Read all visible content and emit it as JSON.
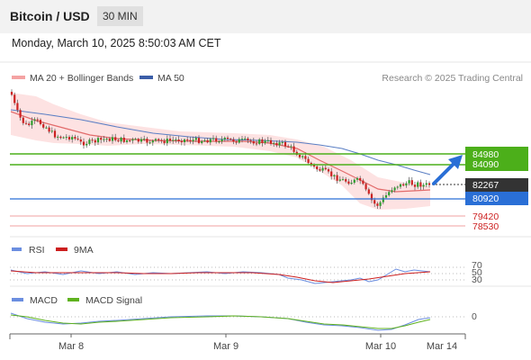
{
  "header": {
    "title": "Bitcoin / USD",
    "timeframe": "30 MIN"
  },
  "datetime": "Monday, March 10, 2025 8:50:03 AM CET",
  "legend": {
    "bb": "MA 20 + Bollinger Bands",
    "ma50": "MA 50",
    "credit": "Research © 2025 Trading Central"
  },
  "colors": {
    "green": "#4caf1a",
    "blue": "#2a6fd6",
    "red": "#cc1f1f",
    "ma50": "#5b7fc4",
    "bb_fill": "#fde2e2",
    "rsi": "#6b8ee0",
    "rsi_ma": "#cc1f1f",
    "macd": "#6b8ee0",
    "macd_signal": "#5fb21e"
  },
  "levels": {
    "resistance_2": "84980",
    "resistance_1": "84090",
    "last": "82267",
    "pivot": "80920",
    "support_1": "79420",
    "support_2": "78530"
  },
  "rsi": {
    "label": "RSI",
    "ma_label": "9MA",
    "ticks": [
      "70",
      "50",
      "30"
    ]
  },
  "macd": {
    "label": "MACD",
    "signal_label": "MACD Signal",
    "zero": "0"
  },
  "x_labels": [
    "Mar 8",
    "Mar 9",
    "Mar 10",
    "Mar 14"
  ],
  "chart_data": {
    "type": "line",
    "title": "Bitcoin / USD",
    "subtitle": "30 MIN",
    "price_panel": {
      "series": [
        {
          "name": "MA 20 + Bollinger Bands",
          "x": [
            "Mar 8",
            "",
            "",
            "",
            "Mar 9",
            "",
            "",
            "",
            "Mar 10",
            ""
          ],
          "values": [
            86100,
            85900,
            85300,
            85200,
            85300,
            85100,
            84200,
            82900,
            81400,
            81900
          ]
        },
        {
          "name": "MA 50",
          "x": [
            "Mar 8",
            "",
            "",
            "",
            "Mar 9",
            "",
            "",
            "",
            "Mar 10",
            ""
          ],
          "values": [
            86300,
            86000,
            85600,
            85300,
            85300,
            85200,
            84900,
            84100,
            83300,
            82700
          ]
        }
      ],
      "ohlc_close": [
        87700,
        86300,
        85700,
        85400,
        85300,
        85400,
        85200,
        84200,
        82500,
        81000,
        80600,
        82267
      ],
      "levels": [
        84980,
        84090,
        82267,
        80920,
        79420,
        78530
      ],
      "ylim": [
        78000,
        88500
      ],
      "target_arrow": {
        "from": 82267,
        "to": 84980
      }
    },
    "rsi_panel": {
      "ticks": [
        70,
        50,
        30
      ],
      "latest_rsi": 50,
      "latest_ma": 50
    },
    "macd_panel": {
      "zero_line": 0,
      "latest_macd": 0,
      "latest_signal": 0
    }
  }
}
